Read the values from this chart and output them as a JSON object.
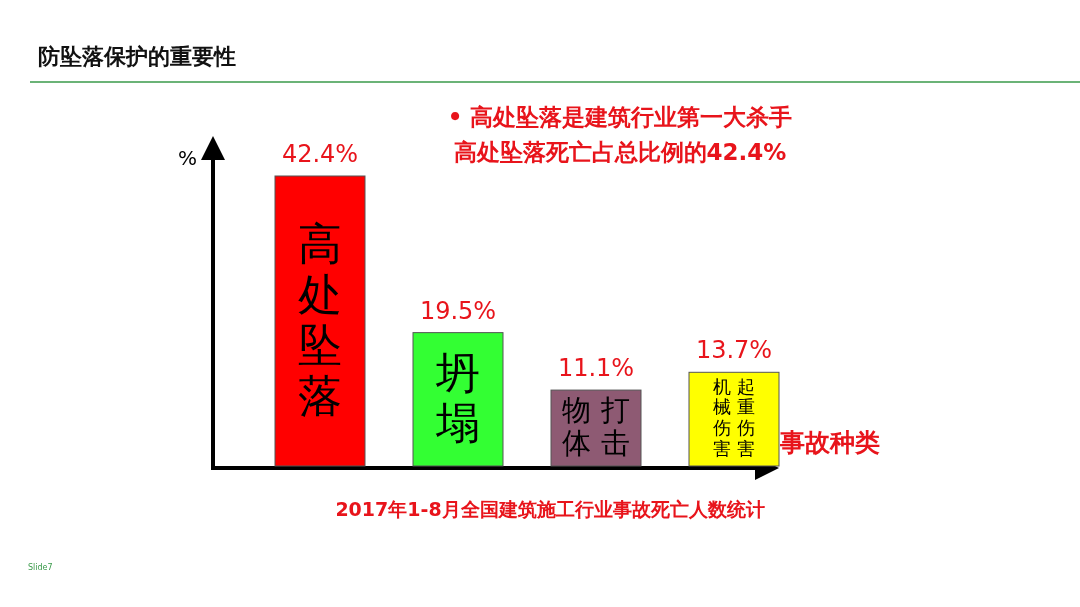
{
  "chart_data": {
    "type": "bar",
    "title": "防坠落保护的重要性",
    "subtitle": "2017年1-8月全国建筑施工行业事故死亡人数统计",
    "xlabel": "事故种类",
    "ylabel": "%",
    "categories": [
      "高处坠落",
      "坍塌",
      "物体打击",
      "机械伤害起重伤害"
    ],
    "values": [
      42.4,
      19.5,
      11.1,
      13.7
    ],
    "colors": [
      "#ff0000",
      "#33ff33",
      "#8e5a73",
      "#ffff00"
    ],
    "value_labels": [
      "42.4%",
      "19.5%",
      "11.1%",
      "13.7%"
    ],
    "annotations": [
      "• 高处坠落是建筑行业第一大杀手",
      "高处坠落死亡占总比例的42.4%",
      "Slide7"
    ]
  }
}
